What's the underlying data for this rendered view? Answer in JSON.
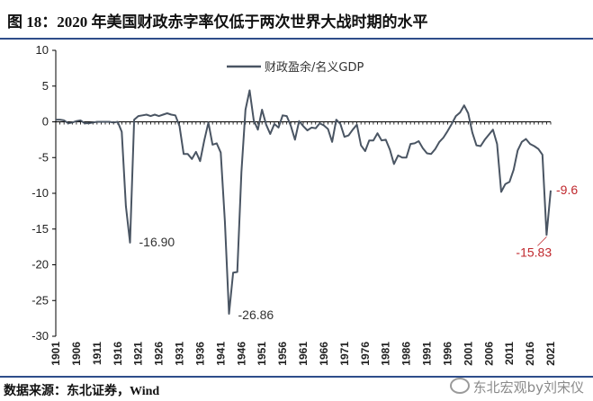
{
  "figure": {
    "title": "图 18：2020 年美国财政赤字率仅低于两次世界大战时期的水平",
    "source": "数据来源：东北证券，Wind",
    "watermark": "东北宏观by刘宋仪"
  },
  "chart_data": {
    "type": "line",
    "title": "",
    "xlabel": "",
    "ylabel": "",
    "ylim": [
      -30,
      10
    ],
    "yticks": [
      "10",
      "5",
      "0",
      "-5",
      "-10",
      "-15",
      "-20",
      "-25",
      "-30"
    ],
    "xticks": [
      "1901",
      "1906",
      "1911",
      "1916",
      "1921",
      "1926",
      "1931",
      "1936",
      "1941",
      "1946",
      "1951",
      "1956",
      "1961",
      "1966",
      "1971",
      "1976",
      "1981",
      "1986",
      "1991",
      "1996",
      "2001",
      "2006",
      "2011",
      "2016",
      "2021"
    ],
    "grid": false,
    "legend_position": "top-center",
    "series": [
      {
        "name": "财政盈余/名义GDP",
        "color": "#4a5563",
        "x": [
          1901,
          1902,
          1903,
          1904,
          1905,
          1906,
          1907,
          1908,
          1909,
          1910,
          1911,
          1912,
          1913,
          1914,
          1915,
          1916,
          1917,
          1918,
          1919,
          1920,
          1921,
          1922,
          1923,
          1924,
          1925,
          1926,
          1927,
          1928,
          1929,
          1930,
          1931,
          1932,
          1933,
          1934,
          1935,
          1936,
          1937,
          1938,
          1939,
          1940,
          1941,
          1942,
          1943,
          1944,
          1945,
          1946,
          1947,
          1948,
          1949,
          1950,
          1951,
          1952,
          1953,
          1954,
          1955,
          1956,
          1957,
          1958,
          1959,
          1960,
          1961,
          1962,
          1963,
          1964,
          1965,
          1966,
          1967,
          1968,
          1969,
          1970,
          1971,
          1972,
          1973,
          1974,
          1975,
          1976,
          1977,
          1978,
          1979,
          1980,
          1981,
          1982,
          1983,
          1984,
          1985,
          1986,
          1987,
          1988,
          1989,
          1990,
          1991,
          1992,
          1993,
          1994,
          1995,
          1996,
          1997,
          1998,
          1999,
          2000,
          2001,
          2002,
          2003,
          2004,
          2005,
          2006,
          2007,
          2008,
          2009,
          2010,
          2011,
          2012,
          2013,
          2014,
          2015,
          2016,
          2017,
          2018,
          2019,
          2020,
          2021
        ],
        "values": [
          0.3,
          0.3,
          0.2,
          -0.2,
          -0.1,
          0.1,
          0.2,
          -0.2,
          -0.2,
          -0.1,
          0,
          0,
          0,
          0,
          -0.1,
          0,
          -1.4,
          -11.8,
          -16.9,
          0.3,
          0.8,
          0.9,
          1.0,
          0.8,
          1.0,
          0.8,
          1.0,
          1.2,
          1.0,
          0.9,
          -0.6,
          -4.5,
          -4.5,
          -5.2,
          -4.2,
          -5.5,
          -2.6,
          -0.1,
          -3.2,
          -3.0,
          -4.3,
          -13.9,
          -26.86,
          -21.1,
          -21.0,
          -7.0,
          1.7,
          4.4,
          0.2,
          -1.1,
          1.7,
          -0.4,
          -1.7,
          -0.3,
          -0.8,
          0.9,
          0.8,
          -0.6,
          -2.5,
          0.1,
          -0.6,
          -1.2,
          -0.8,
          -0.9,
          -0.2,
          -0.5,
          -1.0,
          -2.8,
          0.3,
          -0.3,
          -2.1,
          -1.9,
          -1.1,
          -0.4,
          -3.3,
          -4.1,
          -2.6,
          -2.6,
          -1.6,
          -2.6,
          -2.5,
          -3.9,
          -5.9,
          -4.7,
          -5.0,
          -5.0,
          -3.1,
          -3.0,
          -2.7,
          -3.7,
          -4.4,
          -4.5,
          -3.8,
          -2.8,
          -2.2,
          -1.3,
          -0.3,
          0.8,
          1.3,
          2.3,
          1.2,
          -1.5,
          -3.3,
          -3.4,
          -2.5,
          -1.8,
          -1.1,
          -3.1,
          -9.8,
          -8.7,
          -8.4,
          -6.7,
          -4.0,
          -2.8,
          -2.4,
          -3.1,
          -3.4,
          -3.8,
          -4.6,
          -15.83,
          -9.6
        ]
      }
    ],
    "annotations": [
      {
        "text": "-16.90",
        "x": 1919,
        "y": -16.9,
        "color": "#333333"
      },
      {
        "text": "-26.86",
        "x": 1943,
        "y": -26.86,
        "color": "#333333"
      },
      {
        "text": "-15.83",
        "x": 2020,
        "y": -15.83,
        "color": "#c0282d"
      },
      {
        "text": "-9.6",
        "x": 2021,
        "y": -9.6,
        "color": "#c0282d"
      }
    ]
  }
}
